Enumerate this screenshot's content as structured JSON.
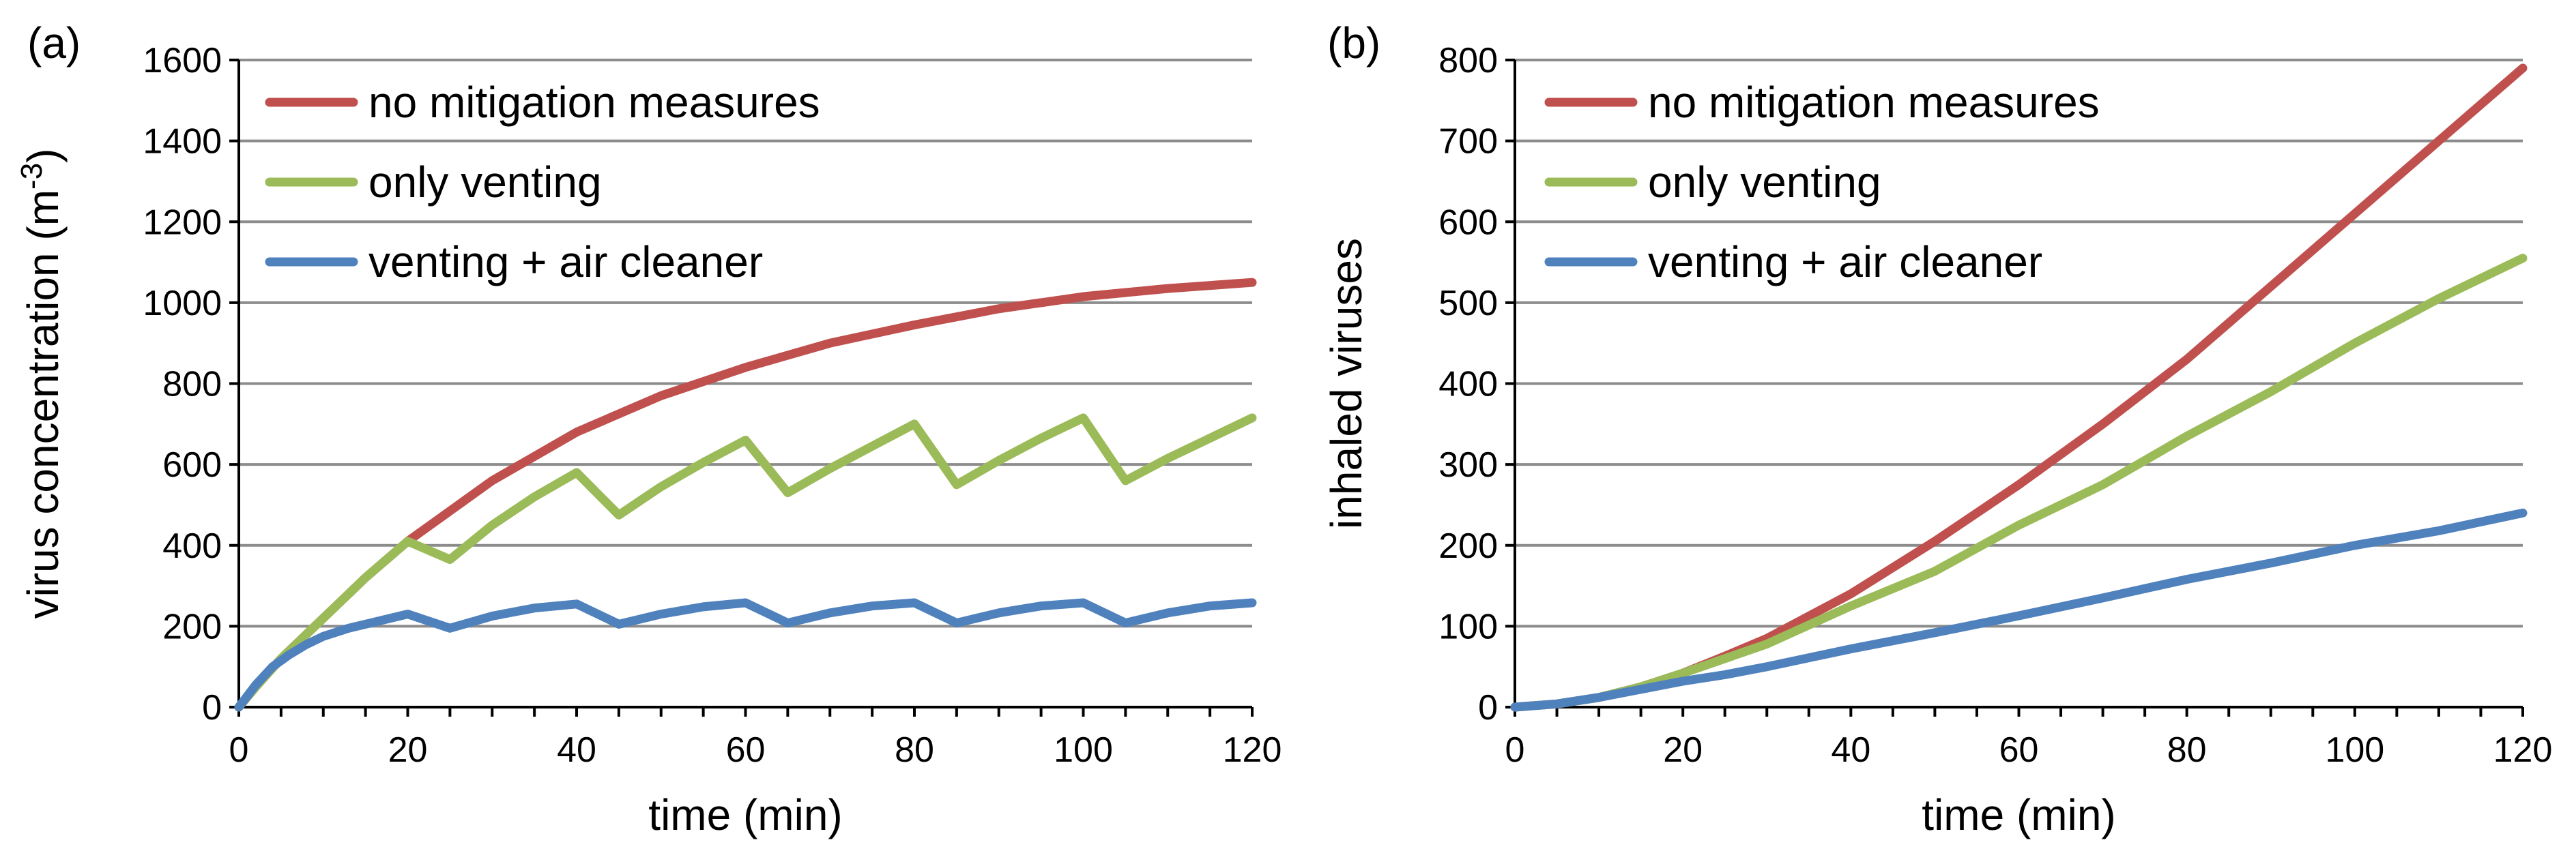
{
  "colors": {
    "no_mitigation": "#c0504d",
    "only_venting": "#9bbb59",
    "venting_air_cleaner": "#4f81bd"
  },
  "chart_data": [
    {
      "type": "line",
      "panel_label": "(a)",
      "title": "",
      "xlabel": "time (min)",
      "ylabel_main": "virus concentration (m",
      "ylabel_sup": "-3",
      "ylabel_tail": ")",
      "xlim": [
        0,
        120
      ],
      "ylim": [
        0,
        1600
      ],
      "xticks": [
        0,
        20,
        40,
        60,
        80,
        100,
        120
      ],
      "xticks_minor_step": 5,
      "yticks": [
        0,
        200,
        400,
        600,
        800,
        1000,
        1200,
        1400,
        1600
      ],
      "grid": true,
      "legend_position": "top-left",
      "series": [
        {
          "name": "no mitigation measures",
          "color_key": "no_mitigation",
          "x": [
            0,
            2,
            5,
            10,
            15,
            20,
            30,
            40,
            50,
            60,
            70,
            80,
            90,
            100,
            110,
            120
          ],
          "values": [
            0,
            50,
            120,
            220,
            320,
            410,
            560,
            680,
            770,
            840,
            900,
            945,
            985,
            1015,
            1035,
            1050
          ]
        },
        {
          "name": "only venting",
          "color_key": "only_venting",
          "x": [
            0,
            2,
            5,
            10,
            15,
            20,
            25,
            30,
            35,
            40,
            45,
            50,
            55,
            60,
            65,
            70,
            75,
            80,
            85,
            90,
            95,
            100,
            105,
            110,
            115,
            120
          ],
          "values": [
            0,
            50,
            120,
            220,
            320,
            410,
            365,
            450,
            520,
            580,
            475,
            545,
            605,
            660,
            530,
            590,
            645,
            700,
            550,
            610,
            665,
            715,
            560,
            615,
            665,
            715
          ]
        },
        {
          "name": "venting + air cleaner",
          "color_key": "venting_air_cleaner",
          "x": [
            0,
            2,
            4,
            6,
            8,
            10,
            13,
            16,
            20,
            25,
            30,
            35,
            40,
            45,
            50,
            55,
            60,
            65,
            70,
            75,
            80,
            85,
            90,
            95,
            100,
            105,
            110,
            115,
            120
          ],
          "values": [
            0,
            55,
            100,
            130,
            155,
            175,
            195,
            210,
            230,
            195,
            225,
            245,
            255,
            205,
            230,
            248,
            258,
            208,
            233,
            250,
            258,
            208,
            233,
            250,
            258,
            208,
            233,
            250,
            258
          ]
        }
      ]
    },
    {
      "type": "line",
      "panel_label": "(b)",
      "title": "",
      "xlabel": "time (min)",
      "ylabel_main": "inhaled viruses",
      "ylabel_sup": "",
      "ylabel_tail": "",
      "xlim": [
        0,
        120
      ],
      "ylim": [
        0,
        800
      ],
      "xticks": [
        0,
        20,
        40,
        60,
        80,
        100,
        120
      ],
      "xticks_minor_step": 5,
      "yticks": [
        0,
        100,
        200,
        300,
        400,
        500,
        600,
        700,
        800
      ],
      "grid": true,
      "legend_position": "top-left",
      "series": [
        {
          "name": "no mitigation measures",
          "color_key": "no_mitigation",
          "x": [
            0,
            5,
            10,
            15,
            20,
            25,
            30,
            40,
            50,
            60,
            70,
            80,
            90,
            100,
            110,
            120
          ],
          "values": [
            0,
            4,
            12,
            25,
            42,
            63,
            85,
            140,
            205,
            275,
            350,
            430,
            520,
            610,
            700,
            790
          ]
        },
        {
          "name": "only venting",
          "color_key": "only_venting",
          "x": [
            0,
            5,
            10,
            15,
            20,
            25,
            30,
            40,
            50,
            60,
            70,
            80,
            90,
            100,
            110,
            120
          ],
          "values": [
            0,
            4,
            12,
            25,
            42,
            60,
            78,
            125,
            168,
            225,
            275,
            335,
            390,
            450,
            505,
            555
          ]
        },
        {
          "name": "venting + air cleaner",
          "color_key": "venting_air_cleaner",
          "x": [
            0,
            5,
            10,
            15,
            20,
            25,
            30,
            40,
            50,
            60,
            70,
            80,
            90,
            100,
            110,
            120
          ],
          "values": [
            0,
            4,
            12,
            22,
            32,
            40,
            50,
            72,
            92,
            113,
            135,
            158,
            178,
            200,
            218,
            240
          ]
        }
      ]
    }
  ]
}
